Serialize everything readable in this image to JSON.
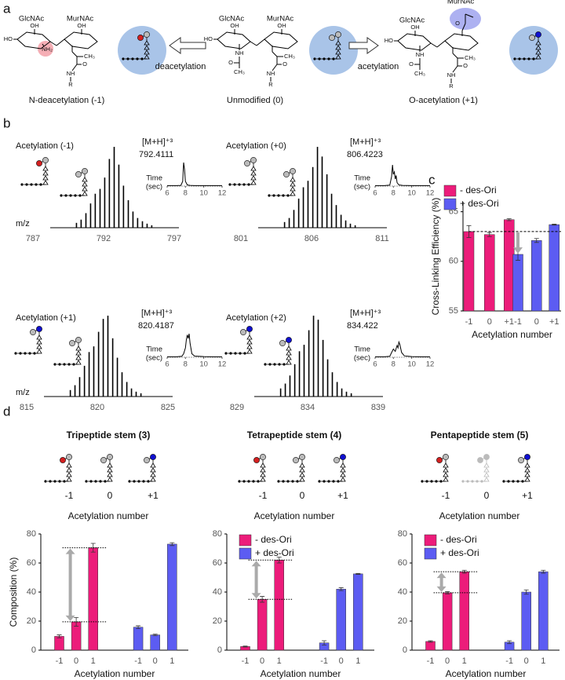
{
  "panel_labels": [
    "a",
    "b",
    "c",
    "d"
  ],
  "structures": {
    "sugars": [
      "GlcNAc",
      "MurNAc"
    ],
    "groups": {
      "oh": "OH",
      "ho": "HO",
      "nh": "NH",
      "nh2": "NH₂",
      "o": "O",
      "ch3": "CH₃",
      "r": "R"
    },
    "modifications": [
      {
        "reaction": "deacetylation",
        "caption": "N-deacetylation (-1)"
      },
      {
        "caption": "Unmodified (0)"
      },
      {
        "reaction": "acetylation",
        "caption": "O-acetylation (+1)"
      }
    ]
  },
  "chart_data": [
    {
      "type": "spectrum",
      "title": "Acetylation (-1)",
      "ion": "[M+H]⁺³",
      "mz": 792.4111,
      "xlabel": "m/z",
      "color": "#000000",
      "x": [
        790.08,
        790.41,
        790.75,
        791.08,
        791.41,
        791.75,
        792.08,
        792.41,
        792.75,
        793.08,
        793.41,
        793.75,
        794.08,
        794.41,
        794.75,
        795.08,
        795.41
      ],
      "values": [
        6,
        10,
        18,
        30,
        42,
        48,
        62,
        85,
        100,
        78,
        52,
        34,
        20,
        12,
        8,
        5,
        3
      ],
      "xlim": [
        786,
        799
      ],
      "xticks": [
        787,
        792,
        797
      ],
      "ylim": [
        0,
        100
      ],
      "inset": {
        "type": "line",
        "xlabel": "Time",
        "xunit": "(sec)",
        "x": [
          6,
          7,
          7.5,
          7.7,
          7.8,
          7.9,
          8.0,
          8.2,
          8.5,
          9,
          10,
          11,
          12
        ],
        "values": [
          2,
          2,
          3,
          20,
          100,
          70,
          20,
          5,
          3,
          2,
          2,
          2,
          2
        ],
        "xlim": [
          6,
          12
        ],
        "xticks": [
          6,
          8,
          10,
          12
        ],
        "ylim": [
          0,
          100
        ]
      }
    },
    {
      "type": "spectrum",
      "title": "Acetylation (+0)",
      "ion": "[M+H]⁺³",
      "mz": 806.4223,
      "color": "#000000",
      "x": [
        804.09,
        804.42,
        804.75,
        805.09,
        805.42,
        805.75,
        806.09,
        806.42,
        806.75,
        807.09,
        807.42,
        807.75,
        808.09,
        808.42,
        808.75,
        809.09
      ],
      "values": [
        7,
        12,
        22,
        36,
        50,
        58,
        75,
        100,
        88,
        66,
        42,
        28,
        16,
        9,
        5,
        3
      ],
      "xlim": [
        800,
        813
      ],
      "xticks": [
        801,
        806,
        811
      ],
      "ylim": [
        0,
        100
      ],
      "inset": {
        "type": "line",
        "xlabel": "Time",
        "xunit": "(sec)",
        "x": [
          6,
          7,
          7.6,
          7.8,
          7.9,
          8.0,
          8.1,
          8.2,
          8.3,
          8.4,
          8.6,
          9,
          10,
          11,
          12
        ],
        "values": [
          2,
          2,
          4,
          40,
          90,
          50,
          60,
          30,
          45,
          15,
          5,
          3,
          2,
          2,
          2
        ],
        "xlim": [
          6,
          12
        ],
        "xticks": [
          6,
          8,
          10,
          12
        ],
        "ylim": [
          0,
          100
        ]
      }
    },
    {
      "type": "spectrum",
      "title": "Acetylation (+1)",
      "ion": "[M+H]⁺³",
      "mz": 820.4187,
      "xlabel": "m/z",
      "color": "#000000",
      "x": [
        818.09,
        818.42,
        818.75,
        819.09,
        819.42,
        819.75,
        820.09,
        820.42,
        820.75,
        821.09,
        821.42,
        821.75,
        822.09,
        822.42,
        822.75,
        823.09
      ],
      "values": [
        8,
        14,
        24,
        38,
        55,
        62,
        80,
        96,
        100,
        72,
        48,
        30,
        18,
        10,
        6,
        4
      ],
      "xlim": [
        814,
        827
      ],
      "xticks": [
        815,
        820,
        825
      ],
      "ylim": [
        0,
        100
      ],
      "inset": {
        "type": "line",
        "xlabel": "Time",
        "xunit": "(sec)",
        "x": [
          6,
          7,
          7.6,
          7.8,
          8.0,
          8.1,
          8.2,
          8.3,
          8.4,
          8.5,
          8.7,
          9,
          10,
          11,
          12
        ],
        "values": [
          2,
          2,
          4,
          15,
          40,
          75,
          95,
          80,
          100,
          60,
          15,
          5,
          3,
          2,
          2
        ],
        "xlim": [
          6,
          12
        ],
        "xticks": [
          6,
          8,
          10,
          12
        ],
        "ylim": [
          0,
          100
        ]
      }
    },
    {
      "type": "spectrum",
      "title": "Acetylation (+2)",
      "ion": "[M+H]⁺³",
      "mz": 834.422,
      "color": "#000000",
      "x": [
        832.09,
        832.42,
        832.75,
        833.09,
        833.42,
        833.75,
        834.09,
        834.42,
        834.75,
        835.09,
        835.42,
        835.75,
        836.09,
        836.42,
        836.75,
        837.09
      ],
      "values": [
        10,
        16,
        26,
        40,
        56,
        64,
        82,
        100,
        95,
        70,
        46,
        30,
        18,
        10,
        6,
        4
      ],
      "xlim": [
        828,
        841
      ],
      "xticks": [
        829,
        834,
        839
      ],
      "ylim": [
        0,
        100
      ],
      "inset": {
        "type": "line",
        "xlabel": "Time",
        "xunit": "(sec)",
        "x": [
          6,
          7,
          7.6,
          7.8,
          8.0,
          8.2,
          8.4,
          8.5,
          8.6,
          8.7,
          8.9,
          9.2,
          10,
          11,
          12
        ],
        "values": [
          2,
          2,
          4,
          20,
          35,
          25,
          50,
          40,
          65,
          55,
          20,
          6,
          3,
          2,
          2
        ],
        "xlim": [
          6,
          12
        ],
        "xticks": [
          6,
          8,
          10,
          12
        ],
        "ylim": [
          0,
          100
        ]
      }
    },
    {
      "type": "bar",
      "ylabel": "Cross-Linking Efficiency (%)",
      "xlabel": "Acetylation number",
      "categories": [
        "-1",
        "0",
        "+1"
      ],
      "series": [
        {
          "name": "- des-Ori",
          "color": "#ec1c7a",
          "values": [
            63.0,
            62.7,
            64.2
          ],
          "errors": [
            0.6,
            0.2,
            0.1
          ]
        },
        {
          "name": "+ des-Ori",
          "color": "#5c5cf2",
          "values": [
            60.7,
            62.1,
            63.7
          ],
          "errors": [
            0.6,
            0.2,
            0.05
          ]
        }
      ],
      "ylim": [
        55,
        66
      ],
      "yticks": [
        55,
        60,
        65
      ],
      "legend": "top-left"
    },
    {
      "type": "bar",
      "title": "Tripeptide stem (3)",
      "glyph_labels": [
        "-1",
        "0",
        "+1"
      ],
      "glyph_xlabel": "Acetylation number",
      "ylabel": "Composition (%)",
      "xlabel": "Acetylation number",
      "categories": [
        "-1",
        "0",
        "1"
      ],
      "series": [
        {
          "color": "#ec1c7a",
          "values": [
            9.5,
            19.5,
            70.5
          ],
          "errors": [
            1,
            3,
            3
          ]
        },
        {
          "color": "#5c5cf2",
          "values": [
            15.8,
            10.5,
            73
          ],
          "errors": [
            1,
            0.5,
            1
          ]
        }
      ],
      "ylim": [
        0,
        80
      ],
      "yticks": [
        0,
        20,
        40,
        60,
        80
      ]
    },
    {
      "type": "bar",
      "title": "Tetrapeptide stem (4)",
      "glyph_labels": [
        "-1",
        "0",
        "+1"
      ],
      "glyph_xlabel": "Acetylation number",
      "xlabel": "Acetylation number",
      "categories": [
        "-1",
        "0",
        "1"
      ],
      "series": [
        {
          "name": "- des-Ori",
          "color": "#ec1c7a",
          "values": [
            2.5,
            35,
            62
          ],
          "errors": [
            0.3,
            2,
            2
          ]
        },
        {
          "name": "+ des-Ori",
          "color": "#5c5cf2",
          "values": [
            5,
            42,
            52.5
          ],
          "errors": [
            1.5,
            1,
            0.3
          ]
        }
      ],
      "ylim": [
        0,
        80
      ],
      "yticks": [
        0,
        20,
        40,
        60,
        80
      ],
      "legend": "top-left"
    },
    {
      "type": "bar",
      "title": "Pentapeptide stem (5)",
      "glyph_labels": [
        "-1",
        "0",
        "+1"
      ],
      "glyph_xlabel": "Acetylation number",
      "xlabel": "Acetylation number",
      "categories": [
        "-1",
        "0",
        "1"
      ],
      "series": [
        {
          "name": "- des-Ori",
          "color": "#ec1c7a",
          "values": [
            6,
            39.5,
            54
          ],
          "errors": [
            0.5,
            0.8,
            1
          ]
        },
        {
          "name": "+ des-Ori",
          "color": "#5c5cf2",
          "values": [
            5.5,
            40,
            54
          ],
          "errors": [
            1,
            1.5,
            1
          ]
        }
      ],
      "ylim": [
        0,
        80
      ],
      "yticks": [
        0,
        20,
        40,
        60,
        80
      ],
      "legend": "top-left"
    }
  ]
}
